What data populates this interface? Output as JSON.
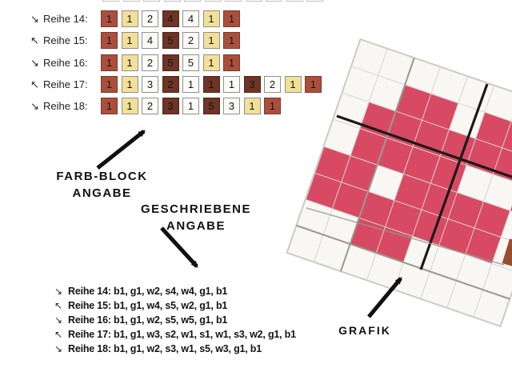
{
  "icons": {
    "se": "↘",
    "nw": "↖"
  },
  "palette": {
    "b": {
      "name": "red",
      "bg": "#ab4f3d",
      "border": "#7c382a"
    },
    "g": {
      "name": "yellow",
      "bg": "#f2e097",
      "border": "#8f8f8f"
    },
    "w": {
      "name": "white",
      "bg": "#fcfbf7",
      "border": "#8f8f8f"
    },
    "s": {
      "name": "brown",
      "bg": "#6e3424",
      "border": "#50251a"
    }
  },
  "block_rows": [
    {
      "label": "Reihe 14:",
      "arrow": "se",
      "blocks": [
        [
          "b",
          1
        ],
        [
          "g",
          1
        ],
        [
          "w",
          2
        ],
        [
          "s",
          4
        ],
        [
          "w",
          4
        ],
        [
          "g",
          1
        ],
        [
          "b",
          1
        ]
      ]
    },
    {
      "label": "Reihe 15:",
      "arrow": "nw",
      "blocks": [
        [
          "b",
          1
        ],
        [
          "g",
          1
        ],
        [
          "w",
          4
        ],
        [
          "s",
          5
        ],
        [
          "w",
          2
        ],
        [
          "g",
          1
        ],
        [
          "b",
          1
        ]
      ]
    },
    {
      "label": "Reihe 16:",
      "arrow": "se",
      "blocks": [
        [
          "b",
          1
        ],
        [
          "g",
          1
        ],
        [
          "w",
          2
        ],
        [
          "s",
          5
        ],
        [
          "w",
          5
        ],
        [
          "g",
          1
        ],
        [
          "b",
          1
        ]
      ]
    },
    {
      "label": "Reihe 17:",
      "arrow": "nw",
      "blocks": [
        [
          "b",
          1
        ],
        [
          "g",
          1
        ],
        [
          "w",
          3
        ],
        [
          "s",
          2
        ],
        [
          "w",
          1
        ],
        [
          "s",
          1
        ],
        [
          "w",
          1
        ],
        [
          "s",
          3
        ],
        [
          "w",
          2
        ],
        [
          "g",
          1
        ],
        [
          "b",
          1
        ]
      ]
    },
    {
      "label": "Reihe 18:",
      "arrow": "se",
      "blocks": [
        [
          "b",
          1
        ],
        [
          "g",
          1
        ],
        [
          "w",
          2
        ],
        [
          "s",
          3
        ],
        [
          "w",
          1
        ],
        [
          "s",
          5
        ],
        [
          "w",
          3
        ],
        [
          "g",
          1
        ],
        [
          "b",
          1
        ]
      ]
    }
  ],
  "written_rows": [
    {
      "arrow": "se",
      "text": "Reihe 14: b1, g1, w2, s4, w4, g1, b1"
    },
    {
      "arrow": "nw",
      "text": "Reihe 15: b1, g1, w4, s5, w2, g1, b1"
    },
    {
      "arrow": "se",
      "text": "Reihe 16: b1, g1, w2, s5, w5, g1, b1"
    },
    {
      "arrow": "nw",
      "text": "Reihe 17: b1, g1, w3, s2, w1, s1, w1, s3, w2, g1, b1"
    },
    {
      "arrow": "se",
      "text": "Reihe 18: b1, g1, w2, s3, w1, s5, w3, g1, b1"
    }
  ],
  "annotations": {
    "farb_block_line1": "FARB-BLOCK",
    "farb_block_line2": "ANGABE",
    "geschriebene_line1": "GESCHRIEBENE",
    "geschriebene_line2": "ANGABE",
    "grafik": "GRAFIK"
  },
  "grafik": {
    "rotation_deg": 19,
    "cols": 8,
    "rows": 8,
    "cell_color": "#d84a63",
    "empty_color": "#f8f7f3",
    "pink_matrix": [
      [
        0,
        0,
        0,
        0,
        0,
        0,
        0,
        0
      ],
      [
        0,
        0,
        1,
        1,
        0,
        1,
        1,
        0
      ],
      [
        0,
        1,
        1,
        1,
        1,
        1,
        1,
        1
      ],
      [
        0,
        1,
        1,
        1,
        1,
        0,
        0,
        1
      ],
      [
        1,
        1,
        0,
        1,
        1,
        1,
        1,
        0
      ],
      [
        1,
        1,
        1,
        1,
        1,
        1,
        1,
        0
      ],
      [
        0,
        0,
        1,
        1,
        0,
        0,
        0,
        0
      ],
      [
        0,
        0,
        0,
        0,
        0,
        0,
        0,
        0
      ]
    ]
  }
}
